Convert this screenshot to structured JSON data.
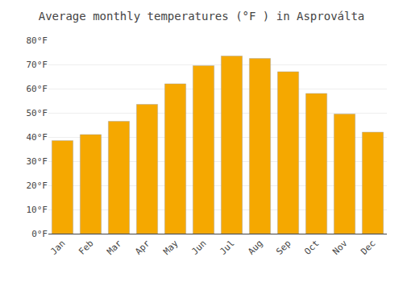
{
  "chart_data": {
    "type": "bar",
    "title": "Average monthly temperatures (°F ) in Asproválta",
    "categories": [
      "Jan",
      "Feb",
      "Mar",
      "Apr",
      "May",
      "Jun",
      "Jul",
      "Aug",
      "Sep",
      "Oct",
      "Nov",
      "Dec"
    ],
    "values": [
      38.5,
      41.0,
      46.5,
      53.5,
      62.0,
      69.5,
      73.5,
      72.5,
      67.0,
      58.0,
      49.5,
      42.0
    ],
    "color": "#F5A800",
    "ylim": [
      0,
      80
    ],
    "yticks": [
      {
        "value": 0,
        "label": "0°F"
      },
      {
        "value": 10,
        "label": "10°F"
      },
      {
        "value": 20,
        "label": "20°F"
      },
      {
        "value": 30,
        "label": "30°F"
      },
      {
        "value": 40,
        "label": "40°F"
      },
      {
        "value": 50,
        "label": "50°F"
      },
      {
        "value": 60,
        "label": "60°F"
      },
      {
        "value": 70,
        "label": "70°F"
      },
      {
        "value": 80,
        "label": "80°F"
      }
    ],
    "grid": true
  }
}
